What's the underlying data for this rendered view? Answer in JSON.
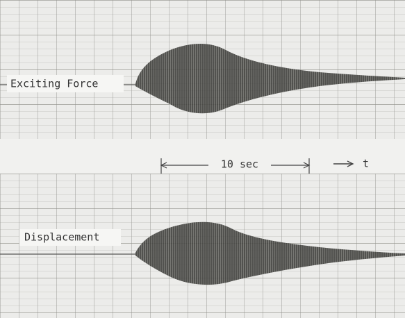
{
  "traces": [
    {
      "label": "Exciting Force"
    },
    {
      "label": "Displacement"
    }
  ],
  "time_scale": {
    "label": "10 sec",
    "axis_label": "t"
  }
}
